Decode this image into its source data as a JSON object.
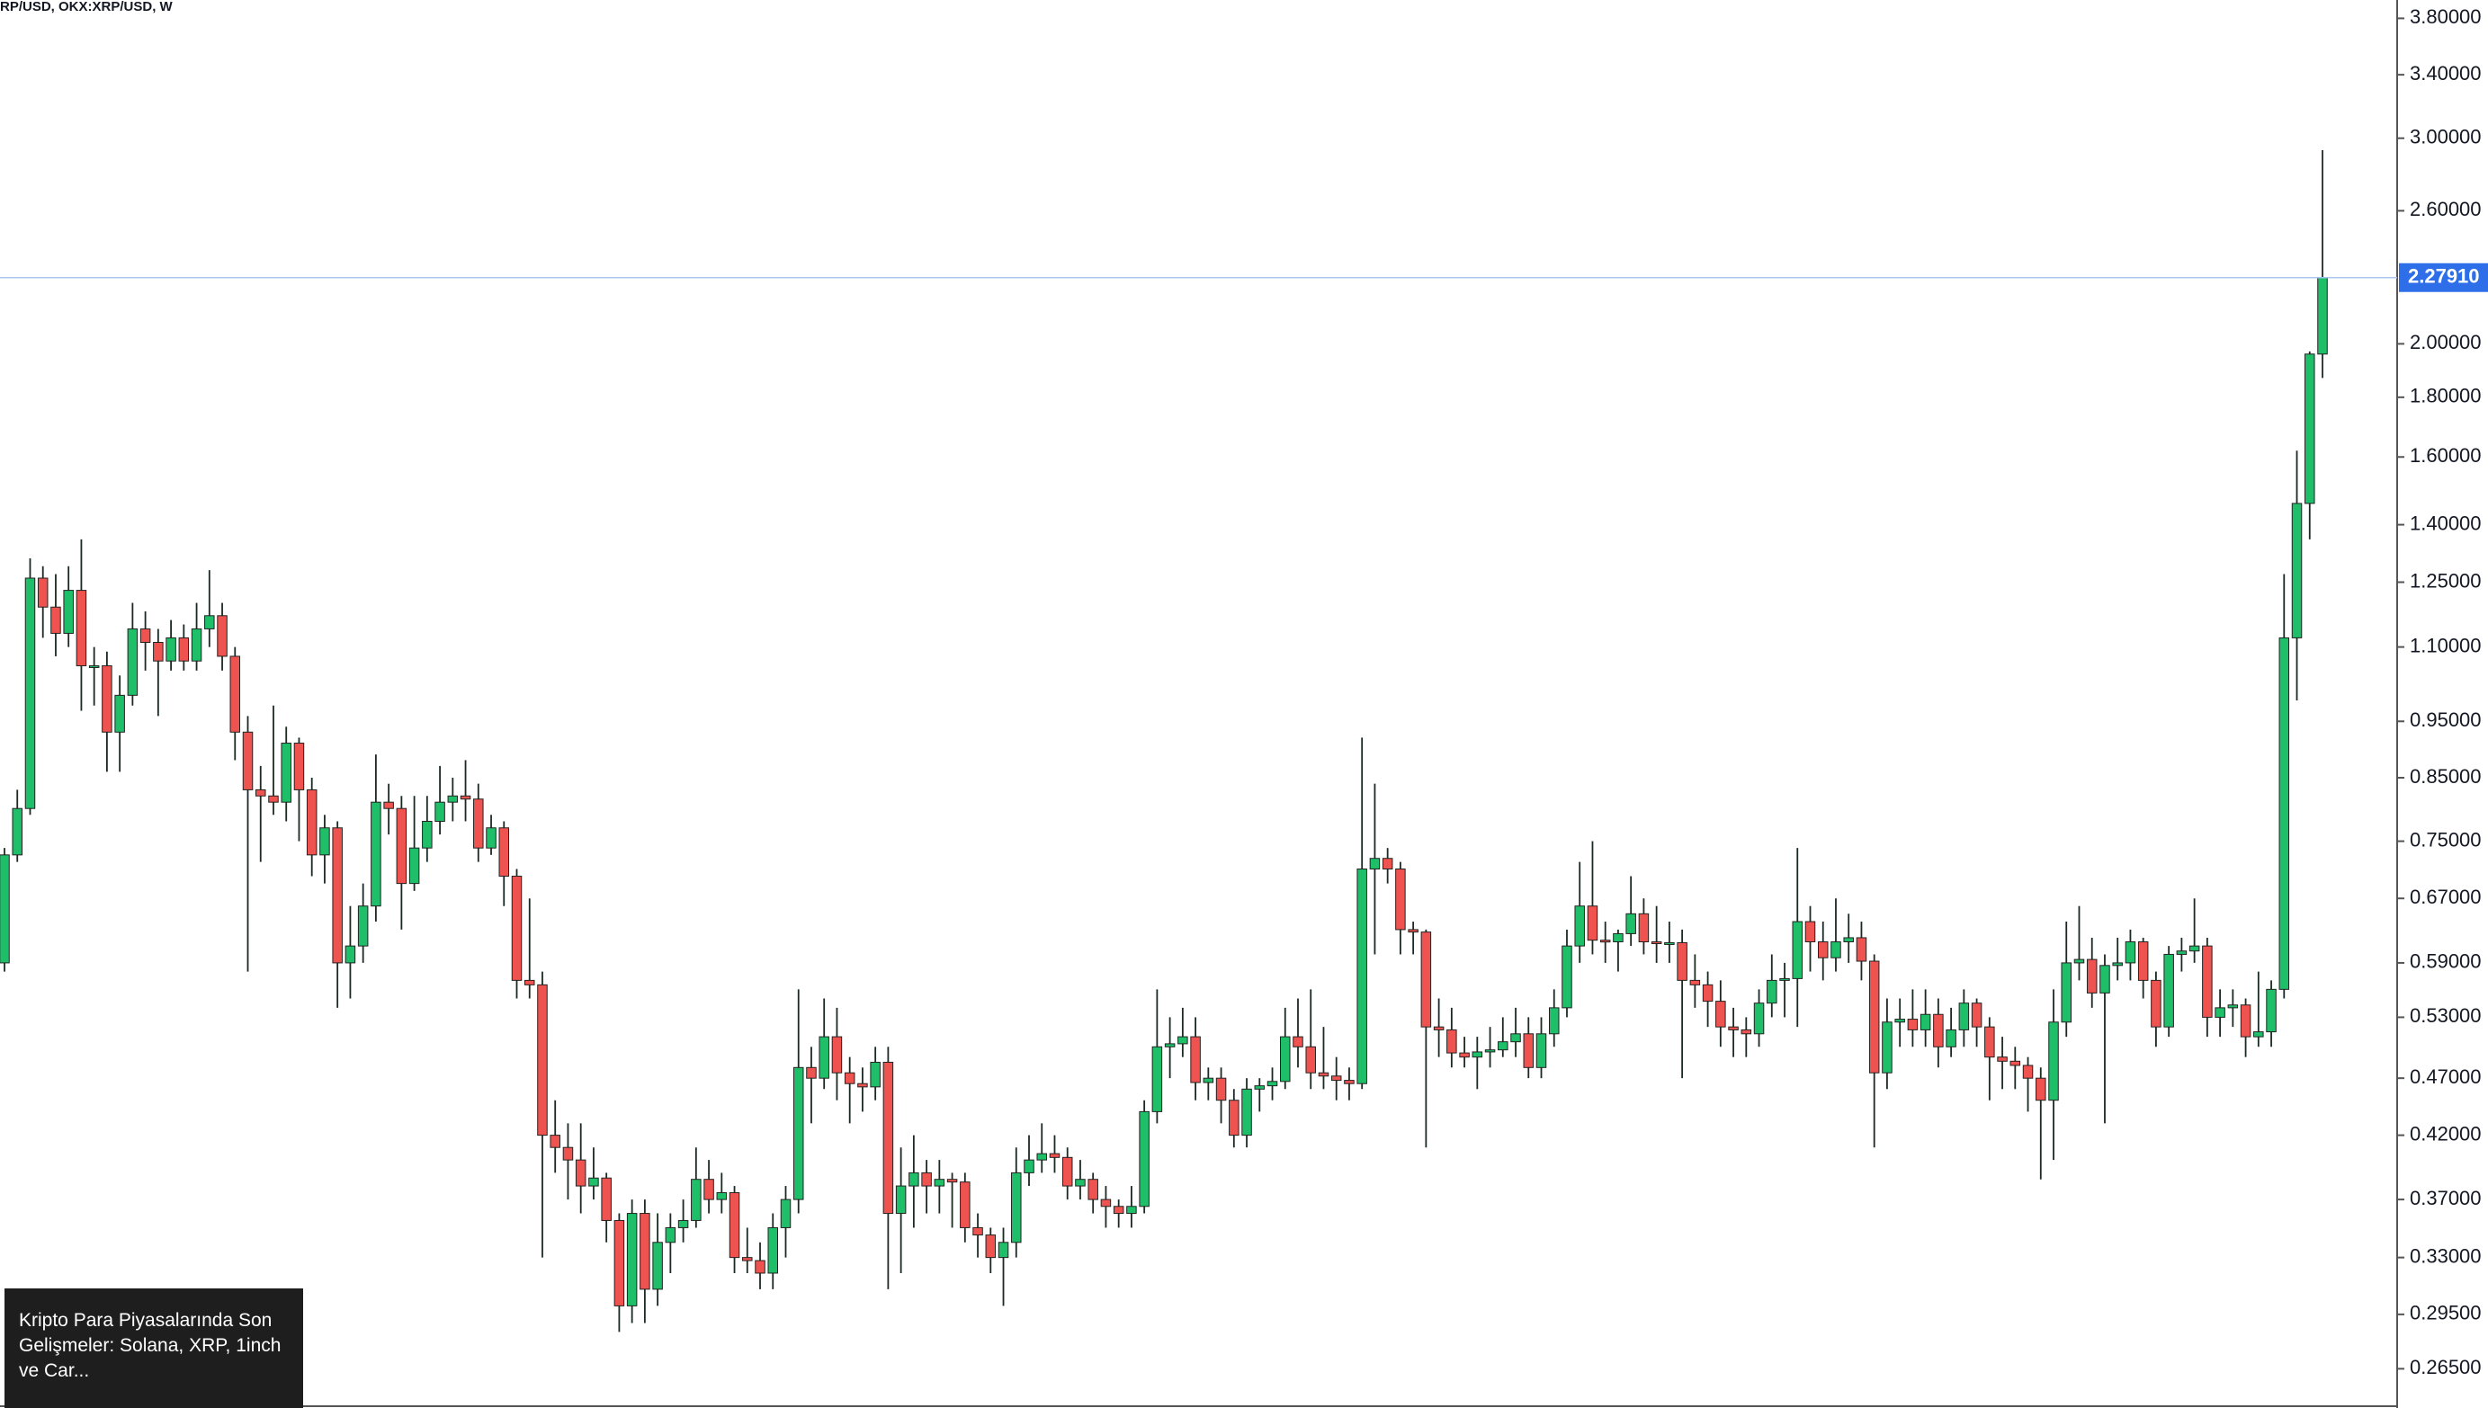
{
  "chart_data": {
    "type": "candlestick",
    "title": "RP/USD, OKX:XRP/USD, W",
    "up_color": "#1fbf6a",
    "down_color": "#ef5350",
    "log_scale": true,
    "ylim": [
      0.2457,
      3.94
    ],
    "yticks": [
      {
        "value": 3.8,
        "label": "3.80000"
      },
      {
        "value": 3.4,
        "label": "3.40000"
      },
      {
        "value": 3.0,
        "label": "3.00000"
      },
      {
        "value": 2.6,
        "label": "2.60000"
      },
      {
        "value": 2.0,
        "label": "2.00000"
      },
      {
        "value": 1.8,
        "label": "1.80000"
      },
      {
        "value": 1.6,
        "label": "1.60000"
      },
      {
        "value": 1.4,
        "label": "1.40000"
      },
      {
        "value": 1.25,
        "label": "1.25000"
      },
      {
        "value": 1.1,
        "label": "1.10000"
      },
      {
        "value": 0.95,
        "label": "0.95000"
      },
      {
        "value": 0.85,
        "label": "0.85000"
      },
      {
        "value": 0.75,
        "label": "0.75000"
      },
      {
        "value": 0.67,
        "label": "0.67000"
      },
      {
        "value": 0.59,
        "label": "0.59000"
      },
      {
        "value": 0.53,
        "label": "0.53000"
      },
      {
        "value": 0.47,
        "label": "0.47000"
      },
      {
        "value": 0.42,
        "label": "0.42000"
      },
      {
        "value": 0.37,
        "label": "0.37000"
      },
      {
        "value": 0.33,
        "label": "0.33000"
      },
      {
        "value": 0.295,
        "label": "0.29500"
      },
      {
        "value": 0.265,
        "label": "0.26500"
      }
    ],
    "last_price": {
      "value": 2.2791,
      "label": "2.27910"
    },
    "candles": [
      [
        0.59,
        0.74,
        0.58,
        0.73
      ],
      [
        0.73,
        0.83,
        0.72,
        0.8
      ],
      [
        0.8,
        1.31,
        0.79,
        1.26
      ],
      [
        1.26,
        1.29,
        1.12,
        1.19
      ],
      [
        1.19,
        1.27,
        1.08,
        1.13
      ],
      [
        1.13,
        1.29,
        1.1,
        1.23
      ],
      [
        1.23,
        1.36,
        0.97,
        1.06
      ],
      [
        1.06,
        1.1,
        0.98,
        1.06
      ],
      [
        1.06,
        1.09,
        0.86,
        0.93
      ],
      [
        0.93,
        1.04,
        0.86,
        1.0
      ],
      [
        1.0,
        1.2,
        0.98,
        1.14
      ],
      [
        1.14,
        1.18,
        1.05,
        1.11
      ],
      [
        1.11,
        1.14,
        0.96,
        1.07
      ],
      [
        1.07,
        1.16,
        1.05,
        1.12
      ],
      [
        1.12,
        1.15,
        1.05,
        1.07
      ],
      [
        1.07,
        1.2,
        1.05,
        1.14
      ],
      [
        1.14,
        1.28,
        1.1,
        1.17
      ],
      [
        1.17,
        1.2,
        1.05,
        1.08
      ],
      [
        1.08,
        1.1,
        0.88,
        0.93
      ],
      [
        0.93,
        0.96,
        0.58,
        0.83
      ],
      [
        0.83,
        0.87,
        0.72,
        0.82
      ],
      [
        0.82,
        0.98,
        0.79,
        0.81
      ],
      [
        0.81,
        0.94,
        0.78,
        0.91
      ],
      [
        0.91,
        0.92,
        0.75,
        0.83
      ],
      [
        0.83,
        0.85,
        0.7,
        0.73
      ],
      [
        0.73,
        0.79,
        0.69,
        0.77
      ],
      [
        0.77,
        0.78,
        0.54,
        0.59
      ],
      [
        0.59,
        0.66,
        0.55,
        0.61
      ],
      [
        0.61,
        0.69,
        0.59,
        0.66
      ],
      [
        0.66,
        0.89,
        0.64,
        0.81
      ],
      [
        0.81,
        0.84,
        0.76,
        0.8
      ],
      [
        0.8,
        0.82,
        0.63,
        0.69
      ],
      [
        0.69,
        0.82,
        0.68,
        0.74
      ],
      [
        0.74,
        0.82,
        0.72,
        0.78
      ],
      [
        0.78,
        0.87,
        0.76,
        0.81
      ],
      [
        0.81,
        0.85,
        0.78,
        0.82
      ],
      [
        0.82,
        0.88,
        0.78,
        0.815
      ],
      [
        0.815,
        0.84,
        0.72,
        0.74
      ],
      [
        0.74,
        0.79,
        0.73,
        0.77
      ],
      [
        0.77,
        0.78,
        0.66,
        0.7
      ],
      [
        0.7,
        0.71,
        0.55,
        0.57
      ],
      [
        0.57,
        0.67,
        0.55,
        0.565
      ],
      [
        0.565,
        0.58,
        0.33,
        0.42
      ],
      [
        0.42,
        0.45,
        0.39,
        0.41
      ],
      [
        0.41,
        0.43,
        0.37,
        0.4
      ],
      [
        0.4,
        0.43,
        0.36,
        0.38
      ],
      [
        0.38,
        0.41,
        0.37,
        0.386
      ],
      [
        0.386,
        0.39,
        0.34,
        0.355
      ],
      [
        0.355,
        0.36,
        0.285,
        0.3
      ],
      [
        0.3,
        0.37,
        0.29,
        0.36
      ],
      [
        0.36,
        0.37,
        0.29,
        0.31
      ],
      [
        0.31,
        0.36,
        0.3,
        0.34
      ],
      [
        0.34,
        0.36,
        0.32,
        0.35
      ],
      [
        0.35,
        0.37,
        0.34,
        0.355
      ],
      [
        0.355,
        0.41,
        0.35,
        0.385
      ],
      [
        0.385,
        0.4,
        0.36,
        0.37
      ],
      [
        0.37,
        0.39,
        0.36,
        0.375
      ],
      [
        0.375,
        0.38,
        0.32,
        0.33
      ],
      [
        0.33,
        0.35,
        0.32,
        0.328
      ],
      [
        0.328,
        0.34,
        0.31,
        0.32
      ],
      [
        0.32,
        0.36,
        0.31,
        0.35
      ],
      [
        0.35,
        0.38,
        0.33,
        0.37
      ],
      [
        0.37,
        0.56,
        0.36,
        0.48
      ],
      [
        0.48,
        0.5,
        0.43,
        0.47
      ],
      [
        0.47,
        0.55,
        0.46,
        0.51
      ],
      [
        0.51,
        0.54,
        0.45,
        0.475
      ],
      [
        0.475,
        0.49,
        0.43,
        0.465
      ],
      [
        0.465,
        0.48,
        0.44,
        0.462
      ],
      [
        0.462,
        0.5,
        0.45,
        0.485
      ],
      [
        0.485,
        0.5,
        0.31,
        0.36
      ],
      [
        0.36,
        0.41,
        0.32,
        0.38
      ],
      [
        0.38,
        0.42,
        0.35,
        0.39
      ],
      [
        0.39,
        0.4,
        0.36,
        0.38
      ],
      [
        0.38,
        0.4,
        0.36,
        0.385
      ],
      [
        0.385,
        0.39,
        0.35,
        0.383
      ],
      [
        0.383,
        0.39,
        0.34,
        0.35
      ],
      [
        0.35,
        0.36,
        0.33,
        0.345
      ],
      [
        0.345,
        0.35,
        0.32,
        0.33
      ],
      [
        0.33,
        0.35,
        0.3,
        0.34
      ],
      [
        0.34,
        0.41,
        0.33,
        0.39
      ],
      [
        0.39,
        0.42,
        0.38,
        0.4
      ],
      [
        0.4,
        0.43,
        0.39,
        0.405
      ],
      [
        0.405,
        0.42,
        0.39,
        0.402
      ],
      [
        0.402,
        0.41,
        0.37,
        0.38
      ],
      [
        0.38,
        0.4,
        0.37,
        0.385
      ],
      [
        0.385,
        0.39,
        0.36,
        0.37
      ],
      [
        0.37,
        0.38,
        0.35,
        0.365
      ],
      [
        0.365,
        0.37,
        0.35,
        0.36
      ],
      [
        0.36,
        0.38,
        0.35,
        0.365
      ],
      [
        0.365,
        0.45,
        0.36,
        0.44
      ],
      [
        0.44,
        0.56,
        0.43,
        0.5
      ],
      [
        0.5,
        0.53,
        0.47,
        0.503
      ],
      [
        0.503,
        0.54,
        0.49,
        0.51
      ],
      [
        0.51,
        0.53,
        0.45,
        0.466
      ],
      [
        0.466,
        0.48,
        0.45,
        0.47
      ],
      [
        0.47,
        0.48,
        0.43,
        0.45
      ],
      [
        0.45,
        0.46,
        0.41,
        0.42
      ],
      [
        0.42,
        0.47,
        0.41,
        0.46
      ],
      [
        0.46,
        0.47,
        0.44,
        0.463
      ],
      [
        0.463,
        0.48,
        0.45,
        0.467
      ],
      [
        0.467,
        0.54,
        0.46,
        0.51
      ],
      [
        0.51,
        0.55,
        0.48,
        0.5
      ],
      [
        0.5,
        0.56,
        0.46,
        0.475
      ],
      [
        0.475,
        0.52,
        0.46,
        0.472
      ],
      [
        0.472,
        0.49,
        0.45,
        0.468
      ],
      [
        0.468,
        0.48,
        0.45,
        0.465
      ],
      [
        0.465,
        0.92,
        0.46,
        0.71
      ],
      [
        0.71,
        0.84,
        0.6,
        0.725
      ],
      [
        0.725,
        0.74,
        0.69,
        0.71
      ],
      [
        0.71,
        0.72,
        0.6,
        0.63
      ],
      [
        0.63,
        0.64,
        0.6,
        0.627
      ],
      [
        0.627,
        0.63,
        0.41,
        0.52
      ],
      [
        0.52,
        0.55,
        0.49,
        0.517
      ],
      [
        0.517,
        0.54,
        0.48,
        0.494
      ],
      [
        0.494,
        0.51,
        0.48,
        0.49
      ],
      [
        0.49,
        0.51,
        0.46,
        0.495
      ],
      [
        0.495,
        0.52,
        0.48,
        0.497
      ],
      [
        0.497,
        0.53,
        0.49,
        0.505
      ],
      [
        0.505,
        0.54,
        0.49,
        0.513
      ],
      [
        0.513,
        0.53,
        0.47,
        0.48
      ],
      [
        0.48,
        0.53,
        0.47,
        0.513
      ],
      [
        0.513,
        0.56,
        0.5,
        0.54
      ],
      [
        0.54,
        0.63,
        0.53,
        0.61
      ],
      [
        0.61,
        0.72,
        0.59,
        0.66
      ],
      [
        0.66,
        0.75,
        0.6,
        0.617
      ],
      [
        0.617,
        0.64,
        0.59,
        0.615
      ],
      [
        0.615,
        0.63,
        0.58,
        0.625
      ],
      [
        0.625,
        0.7,
        0.61,
        0.65
      ],
      [
        0.65,
        0.67,
        0.6,
        0.615
      ],
      [
        0.615,
        0.66,
        0.59,
        0.613
      ],
      [
        0.613,
        0.64,
        0.59,
        0.614
      ],
      [
        0.614,
        0.63,
        0.47,
        0.57
      ],
      [
        0.57,
        0.6,
        0.54,
        0.565
      ],
      [
        0.565,
        0.58,
        0.52,
        0.547
      ],
      [
        0.547,
        0.57,
        0.5,
        0.52
      ],
      [
        0.52,
        0.54,
        0.49,
        0.517
      ],
      [
        0.517,
        0.53,
        0.49,
        0.513
      ],
      [
        0.513,
        0.56,
        0.5,
        0.545
      ],
      [
        0.545,
        0.6,
        0.53,
        0.57
      ],
      [
        0.57,
        0.59,
        0.53,
        0.572
      ],
      [
        0.572,
        0.74,
        0.52,
        0.64
      ],
      [
        0.64,
        0.66,
        0.58,
        0.615
      ],
      [
        0.615,
        0.64,
        0.57,
        0.596
      ],
      [
        0.596,
        0.67,
        0.58,
        0.615
      ],
      [
        0.615,
        0.65,
        0.59,
        0.62
      ],
      [
        0.62,
        0.64,
        0.57,
        0.592
      ],
      [
        0.592,
        0.6,
        0.41,
        0.475
      ],
      [
        0.475,
        0.55,
        0.46,
        0.525
      ],
      [
        0.525,
        0.55,
        0.5,
        0.528
      ],
      [
        0.528,
        0.56,
        0.5,
        0.517
      ],
      [
        0.517,
        0.56,
        0.5,
        0.533
      ],
      [
        0.533,
        0.55,
        0.48,
        0.5
      ],
      [
        0.5,
        0.54,
        0.49,
        0.517
      ],
      [
        0.517,
        0.56,
        0.5,
        0.545
      ],
      [
        0.545,
        0.55,
        0.5,
        0.52
      ],
      [
        0.52,
        0.53,
        0.45,
        0.49
      ],
      [
        0.49,
        0.51,
        0.46,
        0.486
      ],
      [
        0.486,
        0.5,
        0.46,
        0.482
      ],
      [
        0.482,
        0.49,
        0.44,
        0.47
      ],
      [
        0.47,
        0.48,
        0.385,
        0.45
      ],
      [
        0.45,
        0.56,
        0.4,
        0.525
      ],
      [
        0.525,
        0.64,
        0.51,
        0.59
      ],
      [
        0.59,
        0.66,
        0.57,
        0.594
      ],
      [
        0.594,
        0.62,
        0.54,
        0.556
      ],
      [
        0.556,
        0.6,
        0.43,
        0.587
      ],
      [
        0.587,
        0.62,
        0.57,
        0.59
      ],
      [
        0.59,
        0.63,
        0.57,
        0.615
      ],
      [
        0.615,
        0.62,
        0.55,
        0.57
      ],
      [
        0.57,
        0.58,
        0.5,
        0.52
      ],
      [
        0.52,
        0.61,
        0.51,
        0.6
      ],
      [
        0.6,
        0.62,
        0.58,
        0.604
      ],
      [
        0.604,
        0.67,
        0.59,
        0.61
      ],
      [
        0.61,
        0.62,
        0.51,
        0.53
      ],
      [
        0.53,
        0.56,
        0.51,
        0.54
      ],
      [
        0.54,
        0.56,
        0.52,
        0.543
      ],
      [
        0.543,
        0.55,
        0.49,
        0.51
      ],
      [
        0.51,
        0.58,
        0.5,
        0.515
      ],
      [
        0.515,
        0.57,
        0.5,
        0.56
      ],
      [
        0.56,
        1.27,
        0.55,
        1.12
      ],
      [
        1.12,
        1.62,
        0.99,
        1.46
      ],
      [
        1.46,
        1.97,
        1.36,
        1.96
      ],
      [
        1.96,
        2.93,
        1.87,
        2.2791
      ]
    ]
  },
  "overlay": {
    "text": "Kripto Para Piyasalarında Son Gelişmeler: Solana, XRP, 1inch ve Car..."
  }
}
